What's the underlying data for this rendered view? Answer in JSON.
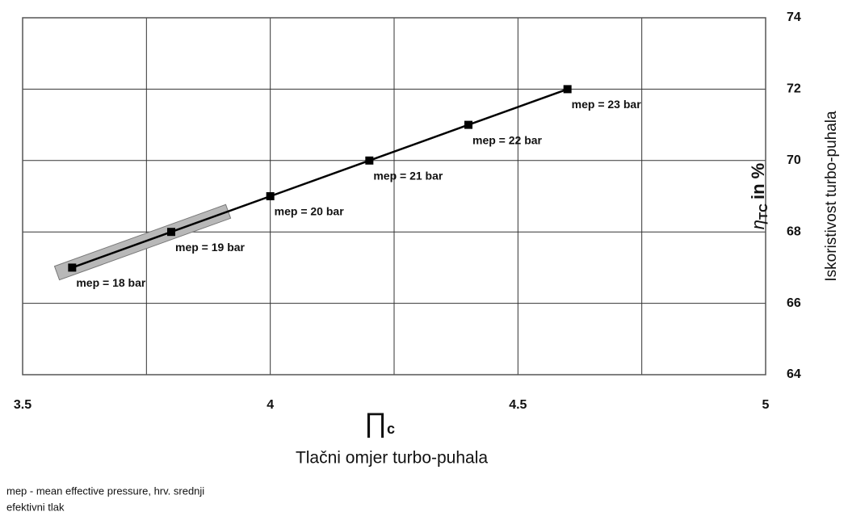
{
  "chart_data": {
    "type": "line",
    "x_symbol": "∏",
    "x_symbol_sub": "c",
    "x_label": "Tlačni omjer turbo-puhala",
    "y_symbol": "η",
    "y_symbol_sub": "TC",
    "y_symbol_unit": "in %",
    "y_label": "Iskoristivost turbo-puhala",
    "x": [
      3.6,
      3.8,
      4.0,
      4.2,
      4.4,
      4.6
    ],
    "series": [
      {
        "name": "mep",
        "color": "#000000",
        "values": [
          67,
          68,
          69,
          70,
          71,
          72
        ]
      }
    ],
    "point_labels": [
      "mep = 18 bar",
      "mep = 19 bar",
      "mep = 20 bar",
      "mep = 21 bar",
      "mep = 22 bar",
      "mep = 23 bar"
    ],
    "xlim": [
      3.5,
      5
    ],
    "xticks": [
      3.5,
      4,
      4.5,
      5
    ],
    "x_minor_grid": [
      3.75,
      4.25,
      4.75
    ],
    "ylim": [
      64,
      74
    ],
    "yticks": [
      64,
      66,
      68,
      70,
      72,
      74
    ],
    "grid": true,
    "y_axis_side": "right",
    "footnote": [
      "mep - mean effective pressure, hrv. srednji",
      "efektivni tlak"
    ]
  }
}
